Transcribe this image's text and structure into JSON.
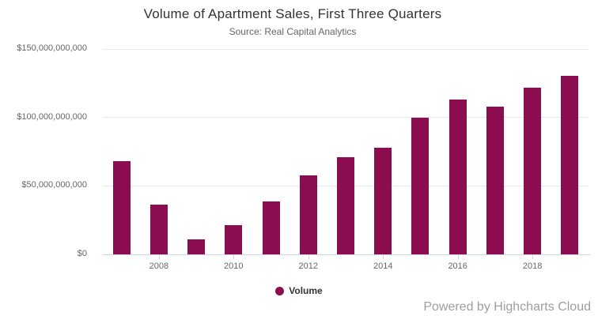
{
  "chart": {
    "title": "Volume of Apartment Sales, First Three Quarters",
    "subtitle": "Source: Real Capital Analytics",
    "credits": "Powered by Highcharts Cloud",
    "colors": {
      "bar": "#8c0d4f",
      "grid_line": "#e6e6e6",
      "axis_line": "#ccd6eb",
      "title_text": "#333333",
      "subtitle_text": "#666666",
      "axis_label_text": "#666666",
      "credits_text": "#9e9e9e"
    }
  },
  "chart_data": {
    "type": "bar",
    "title": "Volume of Apartment Sales, First Three Quarters",
    "subtitle": "Source: Real Capital Analytics",
    "categories": [
      "2007",
      "2008",
      "2009",
      "2010",
      "2011",
      "2012",
      "2013",
      "2014",
      "2015",
      "2016",
      "2017",
      "2018",
      "2019"
    ],
    "series": [
      {
        "name": "Volume",
        "values": [
          68000000000,
          36400000000,
          11000000000,
          21300000000,
          38700000000,
          57700000000,
          71000000000,
          78000000000,
          99800000000,
          113000000000,
          108000000000,
          121700000000,
          130500000000
        ]
      }
    ],
    "xlabel": "",
    "ylabel": "",
    "ylim": [
      0,
      150000000000
    ],
    "yticks": [
      0,
      50000000000,
      100000000000,
      150000000000
    ],
    "ytick_labels": [
      "$0",
      "$50,000,000,000",
      "$100,000,000,000",
      "$150,000,000,000"
    ],
    "xticks_shown": [
      "2008",
      "2010",
      "2012",
      "2014",
      "2016",
      "2018"
    ],
    "grid": true,
    "legend_position": "bottom-center"
  }
}
